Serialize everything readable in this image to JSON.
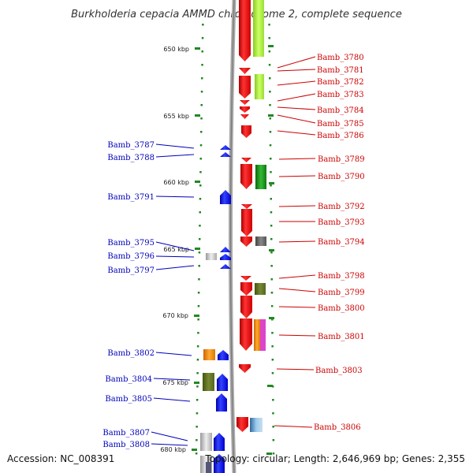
{
  "title": "Burkholderia cepacia AMMD chromosome 2, complete sequence",
  "footer": {
    "accession": "Accession: NC_008391",
    "summary": "Topology: circular; Length: 2,646,969 bp; Genes: 2,355"
  },
  "scale_marks": [
    {
      "label": "650 kbp",
      "kb": 650
    },
    {
      "label": "655 kbp",
      "kb": 655
    },
    {
      "label": "660 kbp",
      "kb": 660
    },
    {
      "label": "665 kbp",
      "kb": 665
    },
    {
      "label": "670 kbp",
      "kb": 670
    },
    {
      "label": "675 kbp",
      "kb": 675
    },
    {
      "label": "680 kbp",
      "kb": 680
    }
  ],
  "right_labels": [
    "Bamb_3780",
    "Bamb_3781",
    "Bamb_3782",
    "Bamb_3783",
    "Bamb_3784",
    "Bamb_3785",
    "Bamb_3786",
    "Bamb_3789",
    "Bamb_3790",
    "Bamb_3792",
    "Bamb_3793",
    "Bamb_3794",
    "Bamb_3798",
    "Bamb_3799",
    "Bamb_3800",
    "Bamb_3801",
    "Bamb_3803",
    "Bamb_3806"
  ],
  "left_labels": [
    "Bamb_3787",
    "Bamb_3788",
    "Bamb_3791",
    "Bamb_3795",
    "Bamb_3796",
    "Bamb_3797",
    "Bamb_3802",
    "Bamb_3804",
    "Bamb_3805",
    "Bamb_3807",
    "Bamb_3808"
  ],
  "colors": {
    "forward_gene": "#ee1111",
    "reverse_gene": "#1111ee",
    "backbone": "#999999",
    "scale_tick": "#228822",
    "label_right": "#cc0000",
    "label_left": "#0000bb"
  }
}
